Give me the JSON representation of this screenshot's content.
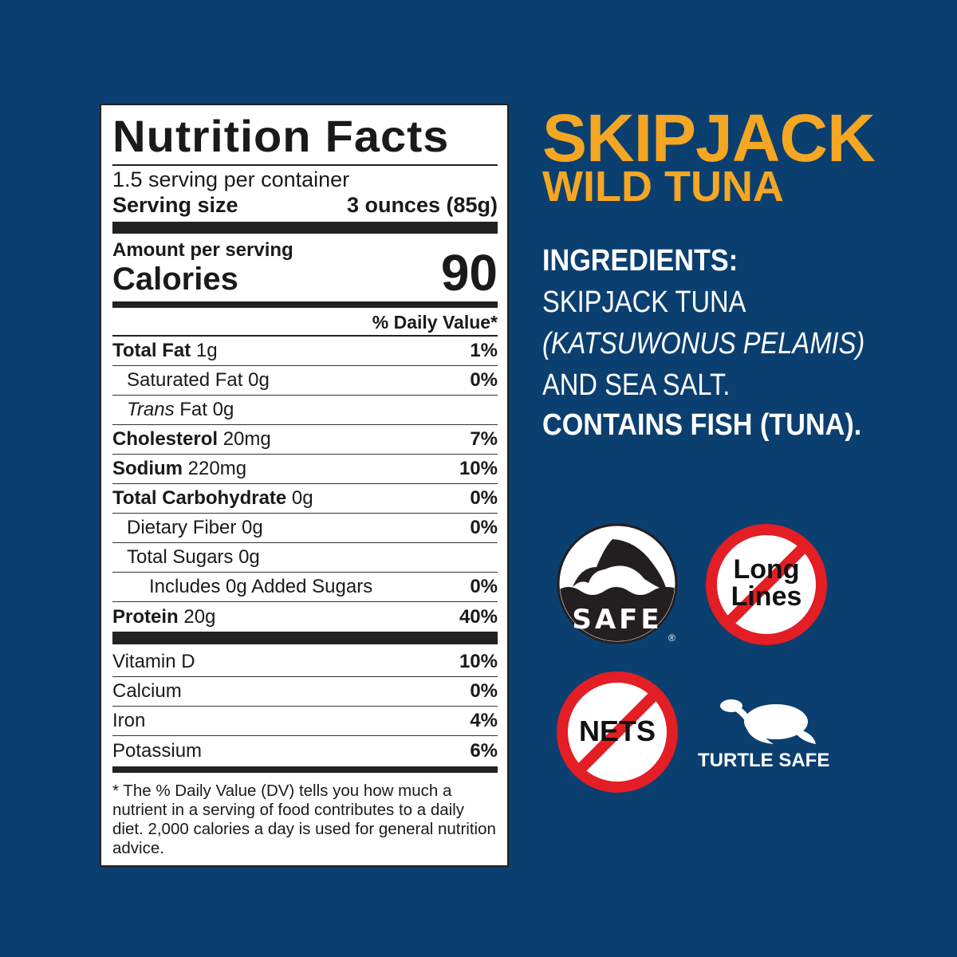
{
  "label": {
    "title": "Nutrition Facts",
    "servings": "1.5 serving per container",
    "serving_size_label": "Serving size",
    "serving_size_value": "3 ounces (85g)",
    "amount_per_serving": "Amount per serving",
    "calories_label": "Calories",
    "calories_value": "90",
    "dv_header": "% Daily Value*",
    "nutrients": [
      {
        "name": "Total Fat",
        "amount": "1g",
        "dv": "1%",
        "bold": true,
        "indent": 0
      },
      {
        "name": "Saturated Fat",
        "amount": "0g",
        "dv": "0%",
        "bold": false,
        "indent": 1
      },
      {
        "name": "Trans",
        "suffix": "Fat",
        "amount": "0g",
        "dv": "",
        "bold": false,
        "indent": 1,
        "italic_name": true
      },
      {
        "name": "Cholesterol",
        "amount": "20mg",
        "dv": "7%",
        "bold": true,
        "indent": 0
      },
      {
        "name": "Sodium",
        "amount": "220mg",
        "dv": "10%",
        "bold": true,
        "indent": 0
      },
      {
        "name": "Total Carbohydrate",
        "amount": "0g",
        "dv": "0%",
        "bold": true,
        "indent": 0
      },
      {
        "name": "Dietary Fiber",
        "amount": "0g",
        "dv": "0%",
        "bold": false,
        "indent": 1
      },
      {
        "name": "Total Sugars",
        "amount": "0g",
        "dv": "",
        "bold": false,
        "indent": 1
      },
      {
        "name": "Includes 0g Added Sugars",
        "amount": "",
        "dv": "0%",
        "bold": false,
        "indent": 2
      },
      {
        "name": "Protein",
        "amount": "20g",
        "dv": "40%",
        "bold": true,
        "indent": 0
      }
    ],
    "vitamins": [
      {
        "name": "Vitamin D",
        "dv": "10%"
      },
      {
        "name": "Calcium",
        "dv": "0%"
      },
      {
        "name": "Iron",
        "dv": "4%"
      },
      {
        "name": "Potassium",
        "dv": "6%"
      }
    ],
    "footnote": "* The % Daily Value (DV) tells you how much a nutrient in a serving of food contributes to a daily diet. 2,000 calories a day is used for general nutrition advice."
  },
  "product": {
    "name_line1": "SKIPJACK",
    "name_line2": "WILD TUNA"
  },
  "ingredients": {
    "heading": "INGREDIENTS:",
    "line1": "SKIPJACK TUNA",
    "line2": "(KATSUWONUS PELAMIS)",
    "line3": "AND SEA SALT.",
    "allergen": "CONTAINS FISH (TUNA)."
  },
  "badges": {
    "dolphin_safe": "SAFE",
    "registered": "®",
    "no_long_lines": "Long Lines",
    "no_nets": "NETS",
    "turtle_safe": "TURTLE SAFE"
  },
  "colors": {
    "background": "#0b3f70",
    "accent": "#f5a623",
    "badge_red": "#e31e24"
  }
}
